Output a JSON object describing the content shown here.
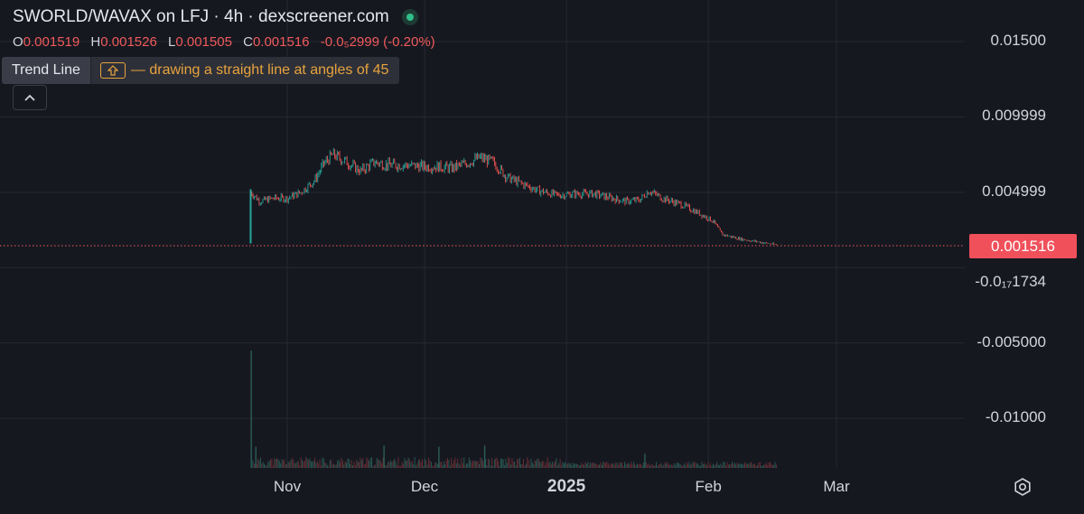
{
  "header": {
    "title": "SWORLD/WAVAX on LFJ · 4h · dexscreener.com",
    "ohlc": [
      {
        "key": "O",
        "value": "0.001519"
      },
      {
        "key": "H",
        "value": "0.001526"
      },
      {
        "key": "L",
        "value": "0.001505"
      },
      {
        "key": "C",
        "value": "0.001516"
      }
    ],
    "change": "-0.0₅2999 (-0.20%)"
  },
  "hint": {
    "tool": "Trend Line",
    "text": "— drawing a straight line at angles of 45",
    "key_icon": "shift-key-icon"
  },
  "current_price_label": "0.001516",
  "colors": {
    "up": "#26a69a",
    "down": "#ef5350",
    "price_line": "#f05a5a",
    "hint_text": "#e8a33d",
    "background": "#161820"
  },
  "chart_data": {
    "type": "candlestick",
    "y_tick_labels": [
      "0.01500",
      "0.009999",
      "0.004999",
      "-0.0₁₇1734",
      "-0.005000",
      "-0.01000"
    ],
    "y_ticks": [
      0.015,
      0.009999,
      0.004999,
      0,
      -0.005,
      -0.01
    ],
    "x_tick_labels": [
      "Nov",
      "Dec",
      "2025",
      "Feb",
      "Mar"
    ],
    "current_price": 0.001516,
    "grid": true,
    "price_series": [
      {
        "date": "2024-10-24",
        "price": 0.0016
      },
      {
        "date": "2024-10-24",
        "price": 0.005
      },
      {
        "date": "2024-10-26",
        "price": 0.0044
      },
      {
        "date": "2024-10-29",
        "price": 0.0046
      },
      {
        "date": "2024-11-01",
        "price": 0.0046
      },
      {
        "date": "2024-11-04",
        "price": 0.005
      },
      {
        "date": "2024-11-07",
        "price": 0.0058
      },
      {
        "date": "2024-11-09",
        "price": 0.0069
      },
      {
        "date": "2024-11-11",
        "price": 0.0075
      },
      {
        "date": "2024-11-14",
        "price": 0.007
      },
      {
        "date": "2024-11-17",
        "price": 0.0064
      },
      {
        "date": "2024-11-20",
        "price": 0.007
      },
      {
        "date": "2024-11-23",
        "price": 0.0068
      },
      {
        "date": "2024-11-27",
        "price": 0.0068
      },
      {
        "date": "2024-12-01",
        "price": 0.0067
      },
      {
        "date": "2024-12-04",
        "price": 0.0067
      },
      {
        "date": "2024-12-07",
        "price": 0.0066
      },
      {
        "date": "2024-12-10",
        "price": 0.0069
      },
      {
        "date": "2024-12-13",
        "price": 0.0073
      },
      {
        "date": "2024-12-16",
        "price": 0.007
      },
      {
        "date": "2024-12-19",
        "price": 0.006
      },
      {
        "date": "2024-12-22",
        "price": 0.0056
      },
      {
        "date": "2024-12-26",
        "price": 0.0051
      },
      {
        "date": "2024-12-30",
        "price": 0.0048
      },
      {
        "date": "2025-01-03",
        "price": 0.0049
      },
      {
        "date": "2025-01-07",
        "price": 0.0049
      },
      {
        "date": "2025-01-11",
        "price": 0.0046
      },
      {
        "date": "2025-01-14",
        "price": 0.0044
      },
      {
        "date": "2025-01-17",
        "price": 0.0045
      },
      {
        "date": "2025-01-19",
        "price": 0.0051
      },
      {
        "date": "2025-01-22",
        "price": 0.0046
      },
      {
        "date": "2025-01-26",
        "price": 0.0042
      },
      {
        "date": "2025-01-30",
        "price": 0.0036
      },
      {
        "date": "2025-02-02",
        "price": 0.0031
      },
      {
        "date": "2025-02-04",
        "price": 0.0022
      },
      {
        "date": "2025-02-08",
        "price": 0.0019
      },
      {
        "date": "2025-02-12",
        "price": 0.0017
      },
      {
        "date": "2025-02-16",
        "price": 0.0015
      }
    ],
    "volume_series": [
      {
        "date": "2024-10-24",
        "relative": 1.0
      },
      {
        "date": "2024-10-25",
        "relative": 0.18
      },
      {
        "date": "2024-11-22",
        "relative": 0.19
      },
      {
        "date": "2024-12-04",
        "relative": 0.18
      },
      {
        "date": "2024-12-14",
        "relative": 0.19
      },
      {
        "date": "2025-01-18",
        "relative": 0.12
      }
    ]
  }
}
